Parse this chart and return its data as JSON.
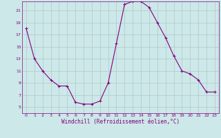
{
  "x": [
    0,
    1,
    2,
    3,
    4,
    5,
    6,
    7,
    8,
    9,
    10,
    11,
    12,
    13,
    14,
    15,
    16,
    17,
    18,
    19,
    20,
    21,
    22,
    23
  ],
  "y": [
    18.0,
    13.0,
    11.0,
    9.5,
    8.5,
    8.5,
    5.8,
    5.5,
    5.5,
    6.0,
    9.0,
    15.5,
    22.0,
    22.5,
    22.5,
    21.5,
    19.0,
    16.5,
    13.5,
    11.0,
    10.5,
    9.5,
    7.5,
    7.5
  ],
  "line_color": "#800080",
  "marker": "+",
  "marker_size": 3,
  "bg_color": "#cce8e8",
  "grid_color": "#b0c8c8",
  "xlabel": "Windchill (Refroidissement éolien,°C)",
  "xlabel_color": "#800080",
  "tick_color": "#800080",
  "ylim": [
    4,
    22.5
  ],
  "xlim": [
    -0.5,
    23.5
  ],
  "yticks": [
    5,
    7,
    9,
    11,
    13,
    15,
    17,
    19,
    21
  ],
  "xticks": [
    0,
    1,
    2,
    3,
    4,
    5,
    6,
    7,
    8,
    9,
    10,
    11,
    12,
    13,
    14,
    15,
    16,
    17,
    18,
    19,
    20,
    21,
    22,
    23
  ]
}
